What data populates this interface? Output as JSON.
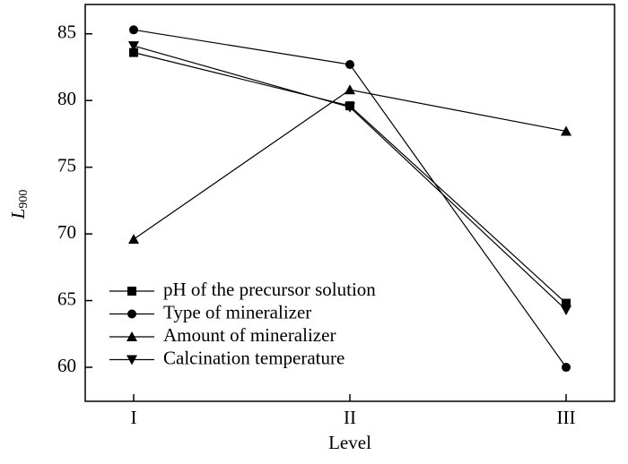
{
  "chart_data": {
    "type": "line",
    "x_label": "Level",
    "y_label": "L",
    "y_label_subscript": "900",
    "categories": [
      "I",
      "II",
      "III"
    ],
    "series": [
      {
        "name": "pH of the precursor solution",
        "color": "#000000",
        "marker": "square",
        "values": [
          83.6,
          79.6,
          64.8
        ]
      },
      {
        "name": "Type of mineralizer",
        "color": "#000000",
        "marker": "circle",
        "values": [
          85.3,
          82.7,
          60.0
        ]
      },
      {
        "name": "Amount of mineralizer",
        "color": "#000000",
        "marker": "triangle-up",
        "values": [
          69.6,
          80.8,
          77.7
        ]
      },
      {
        "name": "Calcination temperature",
        "color": "#000000",
        "marker": "triangle-down",
        "values": [
          84.1,
          79.5,
          64.3
        ]
      }
    ],
    "ylim": [
      57.45,
      87.2
    ],
    "yticks": [
      60,
      65,
      70,
      75,
      80,
      85
    ],
    "grid": false,
    "legend": "lower left"
  }
}
